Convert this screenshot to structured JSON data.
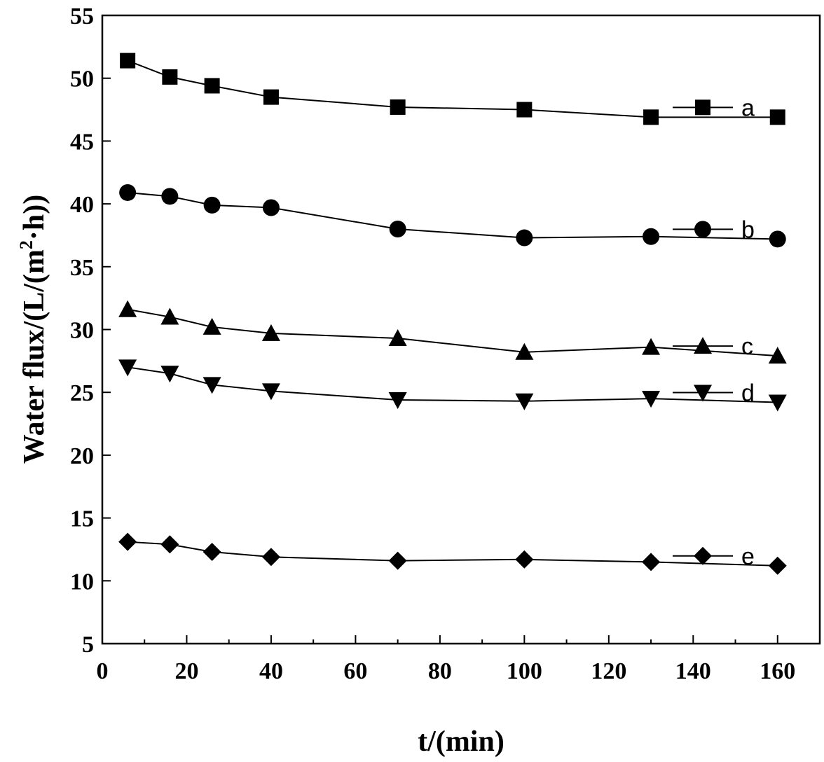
{
  "chart_data": {
    "type": "line",
    "xlabel": "t/(min)",
    "ylabel_parts": {
      "prefix": "Water flux/(L/(m",
      "sup": "2",
      "suffix": "·h))"
    },
    "xlim": [
      0,
      170
    ],
    "ylim": [
      5,
      55
    ],
    "xticks": [
      "0",
      "20",
      "40",
      "60",
      "80",
      "100",
      "120",
      "140",
      "160"
    ],
    "yticks": [
      "5",
      "10",
      "15",
      "20",
      "25",
      "30",
      "35",
      "40",
      "45",
      "50",
      "55"
    ],
    "grid": false,
    "legend_position": "right, beside each series",
    "x": [
      6,
      16,
      26,
      40,
      70,
      100,
      130,
      160
    ],
    "series": [
      {
        "name": "a",
        "marker": "square",
        "values": [
          51.4,
          50.1,
          49.4,
          48.5,
          47.7,
          47.5,
          46.9,
          46.9
        ]
      },
      {
        "name": "b",
        "marker": "circle",
        "values": [
          40.9,
          40.6,
          39.9,
          39.7,
          38.0,
          37.3,
          37.4,
          37.2
        ]
      },
      {
        "name": "c",
        "marker": "triangle-up",
        "values": [
          31.6,
          31.0,
          30.2,
          29.7,
          29.3,
          28.2,
          28.6,
          27.9
        ]
      },
      {
        "name": "d",
        "marker": "triangle-down",
        "values": [
          27.0,
          26.5,
          25.6,
          25.1,
          24.4,
          24.3,
          24.5,
          24.2
        ]
      },
      {
        "name": "e",
        "marker": "diamond",
        "values": [
          13.1,
          12.9,
          12.3,
          11.9,
          11.6,
          11.7,
          11.5,
          11.2
        ]
      }
    ]
  }
}
